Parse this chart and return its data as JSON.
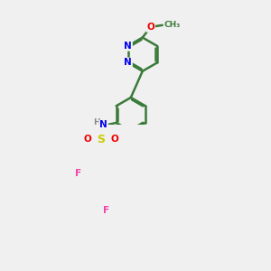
{
  "background_color": "#f0f0f0",
  "bond_color": "#3a7a3a",
  "bond_width": 1.8,
  "atom_colors": {
    "N": "#0000ee",
    "O": "#ee0000",
    "S": "#cccc00",
    "F": "#ee44aa",
    "C": "#3a7a3a",
    "H": "#888888"
  },
  "figsize": [
    3.0,
    3.0
  ],
  "dpi": 100
}
